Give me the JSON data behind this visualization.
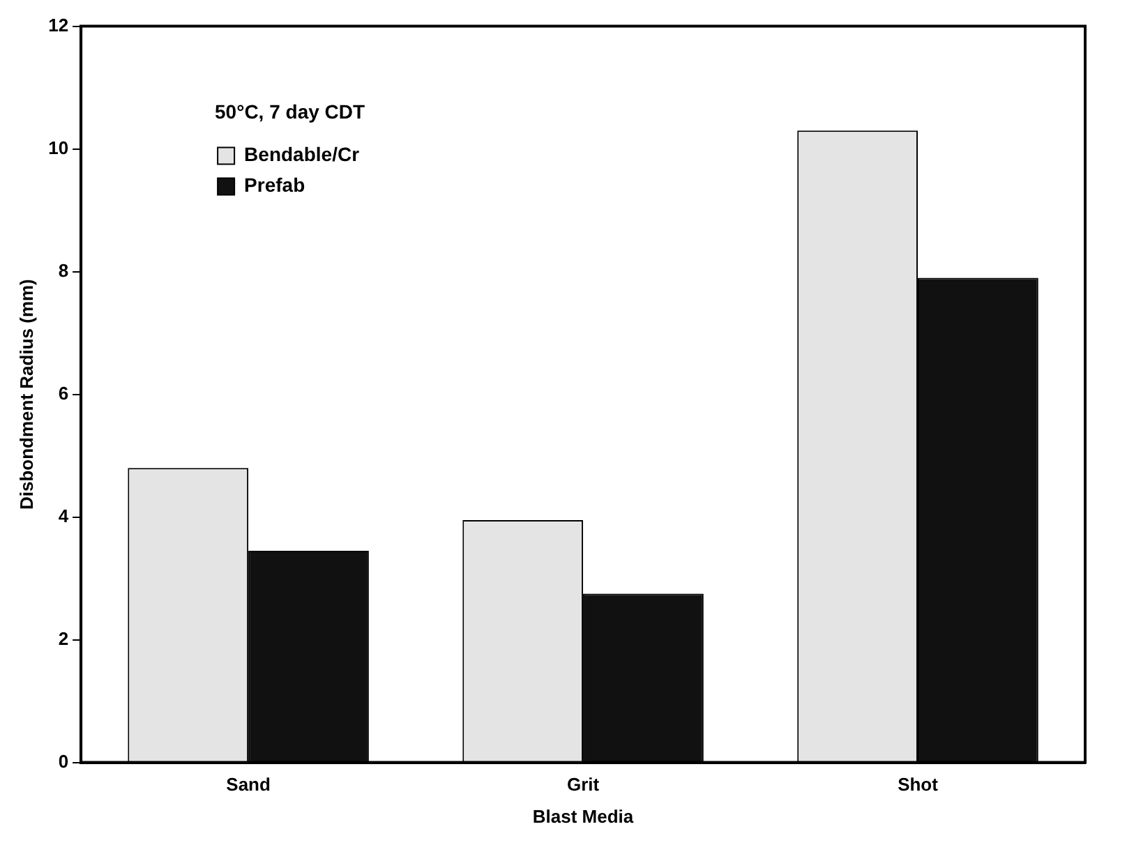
{
  "chart_data": {
    "type": "bar",
    "xlabel": "Blast Media",
    "ylabel": "Disbondment Radius (mm)",
    "legend_title": "50°C, 7 day CDT",
    "categories": [
      "Sand",
      "Grit",
      "Shot"
    ],
    "series": [
      {
        "name": "Bendable/Cr",
        "color": "#e4e4e4",
        "values": [
          4.8,
          3.95,
          10.3
        ]
      },
      {
        "name": "Prefab",
        "color": "#111111",
        "values": [
          3.45,
          2.75,
          7.9
        ]
      }
    ],
    "ylim": [
      0,
      12
    ],
    "yticks": [
      0,
      2,
      4,
      6,
      8,
      10,
      12
    ],
    "grid": false,
    "legend": "top left"
  }
}
